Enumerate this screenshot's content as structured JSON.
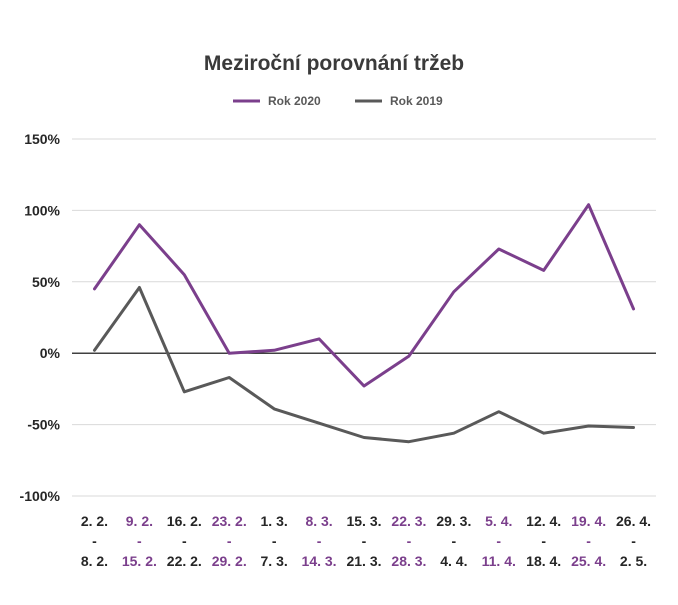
{
  "chart_data": {
    "type": "line",
    "title": "Meziroční porovnání tržeb",
    "legend_position": "top",
    "y_ticks": [
      "150%",
      "100%",
      "50%",
      "0%",
      "-50%",
      "-100%"
    ],
    "ylim": [
      -100,
      150
    ],
    "grid": true,
    "categories": [
      {
        "line1": "2. 2.",
        "line2": "-",
        "line3": "8. 2.",
        "color": "#262626"
      },
      {
        "line1": "9. 2.",
        "line2": "-",
        "line3": "15. 2.",
        "color": "#7b3f8c"
      },
      {
        "line1": "16. 2.",
        "line2": "-",
        "line3": "22. 2.",
        "color": "#262626"
      },
      {
        "line1": "23. 2.",
        "line2": "-",
        "line3": "29. 2.",
        "color": "#7b3f8c"
      },
      {
        "line1": "1. 3.",
        "line2": "-",
        "line3": "7. 3.",
        "color": "#262626"
      },
      {
        "line1": "8. 3.",
        "line2": "-",
        "line3": "14. 3.",
        "color": "#7b3f8c"
      },
      {
        "line1": "15. 3.",
        "line2": "-",
        "line3": "21. 3.",
        "color": "#262626"
      },
      {
        "line1": "22. 3.",
        "line2": "-",
        "line3": "28. 3.",
        "color": "#7b3f8c"
      },
      {
        "line1": "29. 3.",
        "line2": "-",
        "line3": "4. 4.",
        "color": "#262626"
      },
      {
        "line1": "5. 4.",
        "line2": "-",
        "line3": "11. 4.",
        "color": "#7b3f8c"
      },
      {
        "line1": "12. 4.",
        "line2": "-",
        "line3": "18. 4.",
        "color": "#262626"
      },
      {
        "line1": "19. 4.",
        "line2": "-",
        "line3": "25. 4.",
        "color": "#7b3f8c"
      },
      {
        "line1": "26. 4.",
        "line2": "-",
        "line3": "2. 5.",
        "color": "#262626"
      }
    ],
    "series": [
      {
        "name": "Rok 2020",
        "color": "#7b3f8c",
        "values": [
          45,
          90,
          55,
          0,
          2,
          10,
          -23,
          -2,
          43,
          73,
          58,
          104,
          31
        ]
      },
      {
        "name": "Rok 2019",
        "color": "#595959",
        "values": [
          2,
          46,
          -27,
          -17,
          -39,
          -49,
          -59,
          -62,
          -56,
          -41,
          -56,
          -51,
          -52
        ]
      }
    ]
  }
}
